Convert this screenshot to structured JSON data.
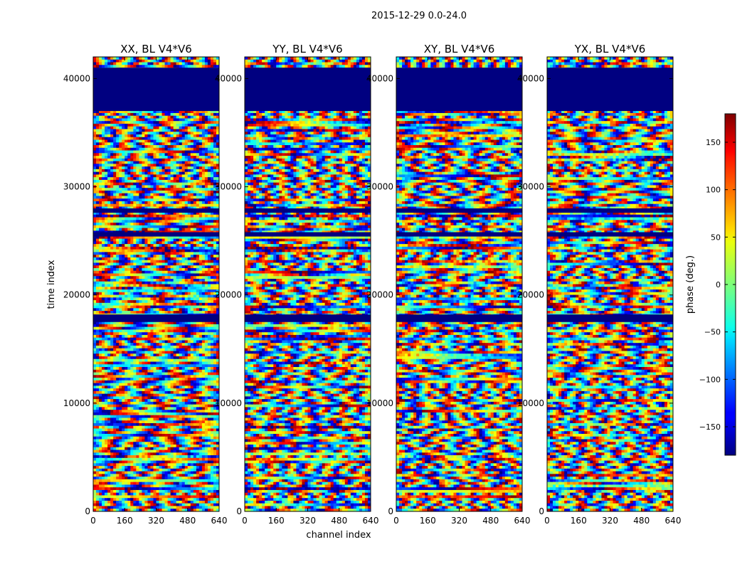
{
  "figure": {
    "suptitle": "2015-12-29 0.0-24.0",
    "xlabel": "channel index",
    "ylabel": "time index",
    "cbar_label": "phase (deg.)"
  },
  "chart_data": [
    {
      "type": "heatmap",
      "title": "XX, BL V4*V6",
      "xlim": [
        0,
        640
      ],
      "ylim": [
        0,
        42000
      ],
      "x_ticks": [
        0,
        160,
        320,
        480,
        640
      ],
      "y_ticks": [
        0,
        10000,
        20000,
        30000,
        40000
      ],
      "value_range": [
        -180,
        180
      ],
      "colormap": "jet",
      "flagged_rows": [
        [
          37000,
          41000
        ],
        [
          27600,
          28000
        ],
        [
          25400,
          25800
        ],
        [
          17500,
          18200
        ]
      ]
    },
    {
      "type": "heatmap",
      "title": "YY, BL V4*V6",
      "xlim": [
        0,
        640
      ],
      "ylim": [
        0,
        42000
      ],
      "x_ticks": [
        0,
        160,
        320,
        480,
        640
      ],
      "y_ticks": [
        0,
        10000,
        20000,
        30000,
        40000
      ],
      "value_range": [
        -180,
        180
      ],
      "colormap": "jet",
      "flagged_rows": [
        [
          37000,
          41000
        ],
        [
          27600,
          28000
        ],
        [
          25400,
          25800
        ],
        [
          17500,
          18200
        ]
      ]
    },
    {
      "type": "heatmap",
      "title": "XY, BL V4*V6",
      "xlim": [
        0,
        640
      ],
      "ylim": [
        0,
        42000
      ],
      "x_ticks": [
        0,
        160,
        320,
        480,
        640
      ],
      "y_ticks": [
        0,
        10000,
        20000,
        30000,
        40000
      ],
      "value_range": [
        -180,
        180
      ],
      "colormap": "jet",
      "flagged_rows": [
        [
          37000,
          41000
        ],
        [
          27600,
          28000
        ],
        [
          25400,
          25800
        ],
        [
          17500,
          18200
        ]
      ]
    },
    {
      "type": "heatmap",
      "title": "YX, BL V4*V6",
      "xlim": [
        0,
        640
      ],
      "ylim": [
        0,
        42000
      ],
      "x_ticks": [
        0,
        160,
        320,
        480,
        640
      ],
      "y_ticks": [
        0,
        10000,
        20000,
        30000,
        40000
      ],
      "value_range": [
        -180,
        180
      ],
      "colormap": "jet",
      "flagged_rows": [
        [
          37000,
          41000
        ],
        [
          27600,
          28000
        ],
        [
          25400,
          25800
        ],
        [
          17500,
          18200
        ]
      ]
    }
  ],
  "colorbar": {
    "ticks": [
      150,
      100,
      50,
      0,
      -50,
      -100,
      -150
    ],
    "range": [
      -180,
      180
    ],
    "colormap": "jet"
  },
  "colors": {
    "jet_dark_blue": "#00007f",
    "jet_dark_red": "#7f0000"
  }
}
